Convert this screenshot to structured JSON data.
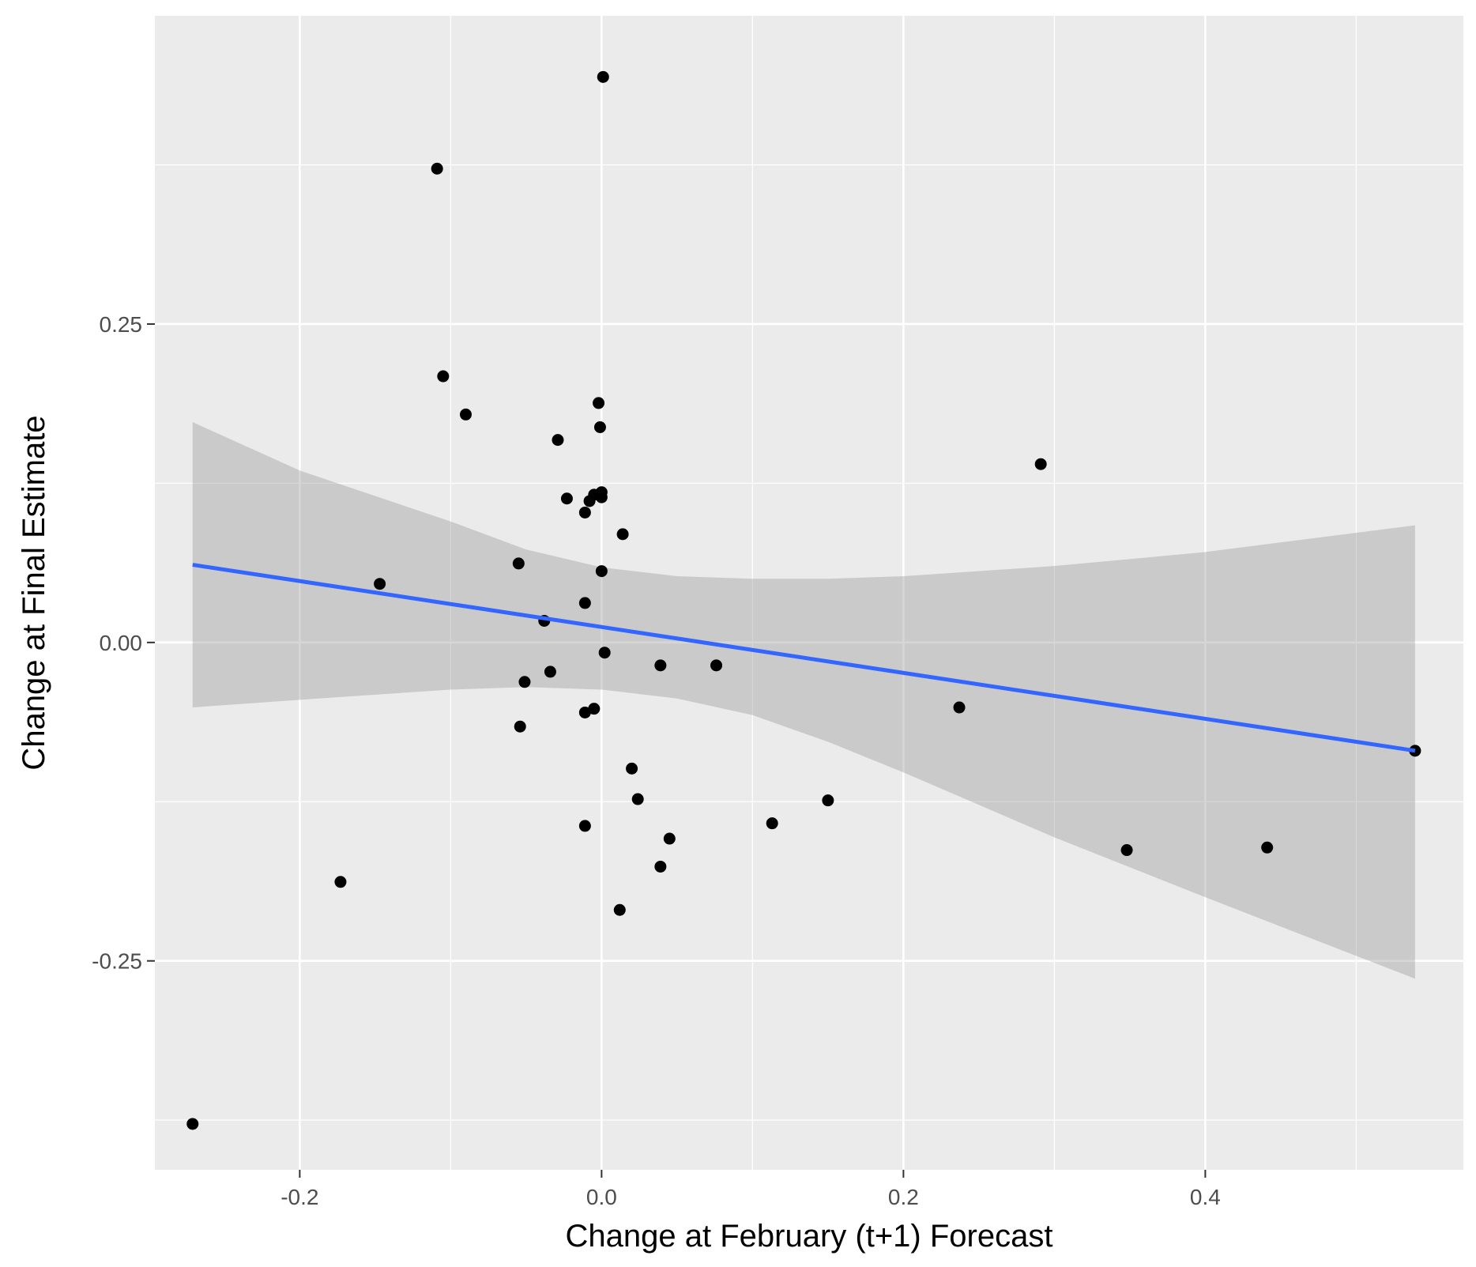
{
  "chart_data": {
    "type": "scatter",
    "title": "",
    "xlabel": "Change at February (t+1) Forecast",
    "ylabel": "Change at Final Estimate",
    "xlim": [
      -0.296,
      0.571
    ],
    "ylim": [
      -0.414,
      0.492
    ],
    "x_ticks": [
      -0.2,
      0.0,
      0.2,
      0.4
    ],
    "x_tick_labels": [
      "-0.2",
      "0.0",
      "0.2",
      "0.4"
    ],
    "x_minor_ticks": [
      -0.3,
      -0.1,
      0.1,
      0.3,
      0.5
    ],
    "y_ticks": [
      0.25,
      0.0,
      -0.25
    ],
    "y_tick_labels": [
      "0.25",
      "0.00",
      "-0.25"
    ],
    "y_minor_ticks": [
      -0.375,
      -0.125,
      0.125,
      0.375
    ],
    "grid": true,
    "colors": {
      "panel": "#ebebeb",
      "grid": "#ffffff",
      "points": "#000000",
      "fit_line": "#3366ff",
      "confidence_band": "#999999"
    },
    "points": [
      {
        "x": 0.001,
        "y": 0.444
      },
      {
        "x": -0.109,
        "y": 0.372
      },
      {
        "x": -0.105,
        "y": 0.209
      },
      {
        "x": -0.09,
        "y": 0.179
      },
      {
        "x": -0.002,
        "y": 0.188
      },
      {
        "x": -0.001,
        "y": 0.169
      },
      {
        "x": -0.029,
        "y": 0.159
      },
      {
        "x": 0.291,
        "y": 0.14
      },
      {
        "x": -0.023,
        "y": 0.113
      },
      {
        "x": -0.005,
        "y": 0.116
      },
      {
        "x": -0.008,
        "y": 0.111
      },
      {
        "x": 0.0,
        "y": 0.114
      },
      {
        "x": 0.0,
        "y": 0.118
      },
      {
        "x": -0.011,
        "y": 0.102
      },
      {
        "x": 0.014,
        "y": 0.085
      },
      {
        "x": -0.055,
        "y": 0.062
      },
      {
        "x": -0.147,
        "y": 0.046
      },
      {
        "x": 0.0,
        "y": 0.056
      },
      {
        "x": -0.011,
        "y": 0.031
      },
      {
        "x": -0.038,
        "y": 0.017
      },
      {
        "x": 0.002,
        "y": -0.008
      },
      {
        "x": 0.039,
        "y": -0.018
      },
      {
        "x": 0.076,
        "y": -0.018
      },
      {
        "x": -0.034,
        "y": -0.023
      },
      {
        "x": -0.051,
        "y": -0.031
      },
      {
        "x": -0.005,
        "y": -0.052
      },
      {
        "x": -0.011,
        "y": -0.055
      },
      {
        "x": 0.237,
        "y": -0.051
      },
      {
        "x": -0.054,
        "y": -0.066
      },
      {
        "x": 0.539,
        "y": -0.085
      },
      {
        "x": 0.02,
        "y": -0.099
      },
      {
        "x": 0.024,
        "y": -0.123
      },
      {
        "x": 0.15,
        "y": -0.124
      },
      {
        "x": -0.011,
        "y": -0.144
      },
      {
        "x": 0.113,
        "y": -0.142
      },
      {
        "x": 0.045,
        "y": -0.154
      },
      {
        "x": 0.348,
        "y": -0.163
      },
      {
        "x": 0.441,
        "y": -0.161
      },
      {
        "x": 0.039,
        "y": -0.176
      },
      {
        "x": -0.173,
        "y": -0.188
      },
      {
        "x": 0.012,
        "y": -0.21
      },
      {
        "x": -0.271,
        "y": -0.378
      }
    ],
    "fit_line": {
      "x": [
        -0.271,
        0.539
      ],
      "y": [
        0.061,
        -0.085
      ]
    },
    "confidence_band": {
      "x": [
        -0.271,
        -0.2,
        -0.1,
        -0.05,
        0.0,
        0.05,
        0.1,
        0.15,
        0.2,
        0.3,
        0.4,
        0.539
      ],
      "upper": [
        0.173,
        0.135,
        0.095,
        0.073,
        0.059,
        0.052,
        0.05,
        0.05,
        0.052,
        0.06,
        0.071,
        0.092
      ],
      "lower": [
        -0.051,
        -0.045,
        -0.037,
        -0.035,
        -0.037,
        -0.044,
        -0.057,
        -0.078,
        -0.102,
        -0.153,
        -0.2,
        -0.264
      ]
    }
  }
}
